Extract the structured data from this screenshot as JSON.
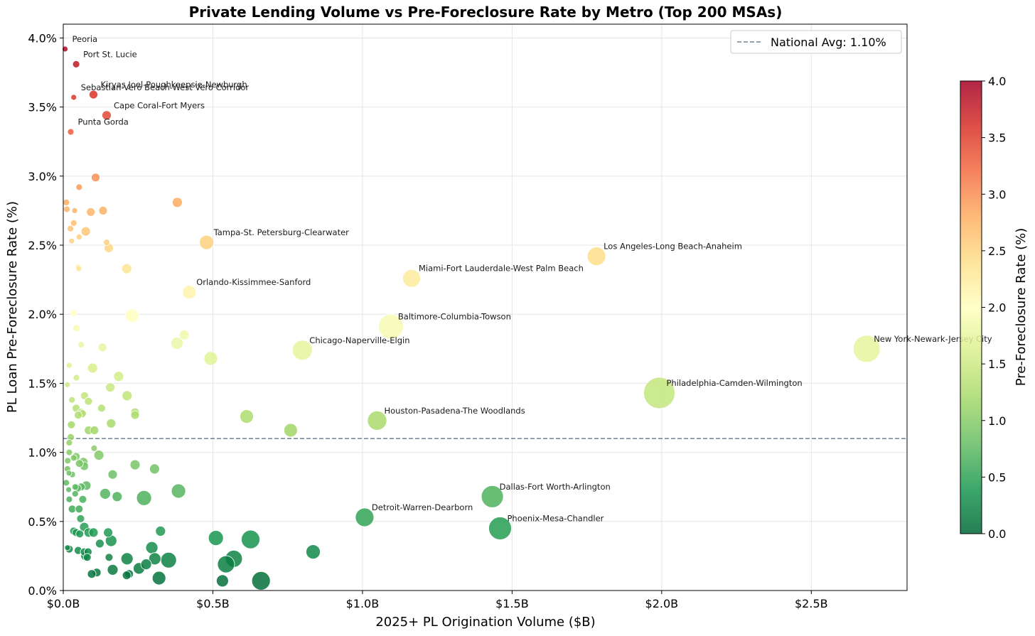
{
  "chart_data": {
    "type": "scatter",
    "title": "Private Lending Volume vs Pre-Foreclosure Rate by Metro (Top 200 MSAs)",
    "xlabel": "2025+ PL Origination Volume ($B)",
    "ylabel": "PL Loan Pre-Foreclosure Rate (%)",
    "xlim": [
      0,
      2.82
    ],
    "ylim": [
      0,
      4.1
    ],
    "x_ticks": [
      0,
      0.5,
      1.0,
      1.5,
      2.0,
      2.5
    ],
    "x_tick_labels": [
      "$0.0B",
      "$0.5B",
      "$1.0B",
      "$1.5B",
      "$2.0B",
      "$2.5B"
    ],
    "y_ticks": [
      0,
      0.5,
      1.0,
      1.5,
      2.0,
      2.5,
      3.0,
      3.5,
      4.0
    ],
    "y_tick_labels": [
      "0.0%",
      "0.5%",
      "1.0%",
      "1.5%",
      "2.0%",
      "2.5%",
      "3.0%",
      "3.5%",
      "4.0%"
    ],
    "grid": true,
    "reference_line": {
      "y": 1.1,
      "label": "National Avg: 1.10%",
      "color": "#708090"
    },
    "legend_position": "top-right",
    "colorbar": {
      "label": "Pre-Foreclosure Rate (%)",
      "range": [
        0,
        4.0
      ],
      "ticks": [
        0,
        0.5,
        1.0,
        1.5,
        2.0,
        2.5,
        3.0,
        3.5,
        4.0
      ],
      "tick_labels": [
        "0.0",
        "0.5",
        "1.0",
        "1.5",
        "2.0",
        "2.5",
        "3.0",
        "3.5",
        "4.0"
      ],
      "colormap": "RdYlGn_r",
      "colors": [
        "#006837",
        "#1a9850",
        "#66bd63",
        "#a6d96a",
        "#d9ef8b",
        "#ffffbf",
        "#fee08b",
        "#fdae61",
        "#f46d43",
        "#d73027",
        "#a50026"
      ]
    },
    "labeled_points": [
      {
        "name": "Peoria",
        "x": 0.006,
        "y": 3.92
      },
      {
        "name": "Port St. Lucie",
        "x": 0.043,
        "y": 3.81
      },
      {
        "name": "Kiryas Joel-Poughkeepsie-Newburgh",
        "x": 0.101,
        "y": 3.59
      },
      {
        "name": "Sebastian-Vero Beach-West Vero Corridor",
        "x": 0.035,
        "y": 3.57
      },
      {
        "name": "Cape Coral-Fort Myers",
        "x": 0.145,
        "y": 3.44
      },
      {
        "name": "Punta Gorda",
        "x": 0.025,
        "y": 3.32
      },
      {
        "name": "Tampa-St. Petersburg-Clearwater",
        "x": 0.479,
        "y": 2.52
      },
      {
        "name": "Los Angeles-Long Beach-Anaheim",
        "x": 1.782,
        "y": 2.42
      },
      {
        "name": "Miami-Fort Lauderdale-West Palm Beach",
        "x": 1.164,
        "y": 2.26
      },
      {
        "name": "Orlando-Kissimmee-Sanford",
        "x": 0.421,
        "y": 2.16
      },
      {
        "name": "Baltimore-Columbia-Towson",
        "x": 1.095,
        "y": 1.91
      },
      {
        "name": "Chicago-Naperville-Elgin",
        "x": 0.799,
        "y": 1.74
      },
      {
        "name": "New York-Newark-Jersey City",
        "x": 2.685,
        "y": 1.75
      },
      {
        "name": "Philadelphia-Camden-Wilmington",
        "x": 1.992,
        "y": 1.43
      },
      {
        "name": "Houston-Pasadena-The Woodlands",
        "x": 1.049,
        "y": 1.23
      },
      {
        "name": "Dallas-Fort Worth-Arlington",
        "x": 1.434,
        "y": 0.68
      },
      {
        "name": "Detroit-Warren-Dearborn",
        "x": 1.007,
        "y": 0.53
      },
      {
        "name": "Phoenix-Mesa-Chandler",
        "x": 1.46,
        "y": 0.45
      }
    ],
    "points": [
      [
        0.006,
        3.92
      ],
      [
        0.043,
        3.81
      ],
      [
        0.101,
        3.59
      ],
      [
        0.035,
        3.57
      ],
      [
        0.145,
        3.44
      ],
      [
        0.025,
        3.32
      ],
      [
        0.108,
        2.99
      ],
      [
        0.053,
        2.92
      ],
      [
        0.381,
        2.81
      ],
      [
        0.01,
        2.81
      ],
      [
        0.012,
        2.76
      ],
      [
        0.038,
        2.75
      ],
      [
        0.092,
        2.74
      ],
      [
        0.133,
        2.75
      ],
      [
        0.035,
        2.66
      ],
      [
        0.024,
        2.62
      ],
      [
        0.075,
        2.6
      ],
      [
        0.053,
        2.56
      ],
      [
        0.028,
        2.53
      ],
      [
        0.145,
        2.52
      ],
      [
        0.479,
        2.52
      ],
      [
        0.152,
        2.48
      ],
      [
        1.782,
        2.42
      ],
      [
        0.212,
        2.33
      ],
      [
        0.05,
        2.34
      ],
      [
        0.052,
        2.33
      ],
      [
        1.164,
        2.26
      ],
      [
        0.421,
        2.16
      ],
      [
        0.23,
        1.99
      ],
      [
        0.035,
        2.01
      ],
      [
        1.095,
        1.91
      ],
      [
        0.044,
        1.9
      ],
      [
        0.404,
        1.85
      ],
      [
        0.38,
        1.79
      ],
      [
        0.06,
        1.78
      ],
      [
        0.131,
        1.76
      ],
      [
        0.799,
        1.74
      ],
      [
        2.685,
        1.75
      ],
      [
        0.493,
        1.68
      ],
      [
        0.02,
        1.63
      ],
      [
        0.098,
        1.61
      ],
      [
        0.185,
        1.55
      ],
      [
        0.044,
        1.54
      ],
      [
        0.014,
        1.49
      ],
      [
        0.157,
        1.47
      ],
      [
        1.992,
        1.43
      ],
      [
        0.213,
        1.41
      ],
      [
        0.071,
        1.41
      ],
      [
        0.084,
        1.37
      ],
      [
        0.029,
        1.38
      ],
      [
        0.128,
        1.32
      ],
      [
        0.043,
        1.32
      ],
      [
        0.06,
        1.29
      ],
      [
        0.064,
        1.28
      ],
      [
        0.24,
        1.29
      ],
      [
        0.24,
        1.27
      ],
      [
        0.05,
        1.27
      ],
      [
        0.613,
        1.26
      ],
      [
        1.049,
        1.23
      ],
      [
        0.16,
        1.21
      ],
      [
        0.027,
        1.2
      ],
      [
        0.76,
        1.16
      ],
      [
        0.085,
        1.16
      ],
      [
        0.104,
        1.16
      ],
      [
        0.025,
        1.11
      ],
      [
        0.02,
        1.07
      ],
      [
        0.103,
        1.03
      ],
      [
        0.02,
        1.0
      ],
      [
        0.119,
        0.98
      ],
      [
        0.043,
        0.97
      ],
      [
        0.035,
        0.96
      ],
      [
        0.015,
        0.94
      ],
      [
        0.067,
        0.93
      ],
      [
        0.054,
        0.92
      ],
      [
        0.07,
        0.9
      ],
      [
        0.24,
        0.91
      ],
      [
        0.305,
        0.88
      ],
      [
        0.014,
        0.88
      ],
      [
        0.019,
        0.85
      ],
      [
        0.03,
        0.84
      ],
      [
        0.165,
        0.84
      ],
      [
        0.01,
        0.78
      ],
      [
        0.077,
        0.76
      ],
      [
        0.04,
        0.75
      ],
      [
        0.06,
        0.75
      ],
      [
        0.047,
        0.74
      ],
      [
        0.018,
        0.73
      ],
      [
        0.385,
        0.72
      ],
      [
        0.14,
        0.7
      ],
      [
        0.04,
        0.7
      ],
      [
        0.18,
        0.68
      ],
      [
        1.434,
        0.68
      ],
      [
        0.27,
        0.67
      ],
      [
        0.065,
        0.66
      ],
      [
        0.02,
        0.66
      ],
      [
        0.03,
        0.59
      ],
      [
        0.053,
        0.59
      ],
      [
        1.007,
        0.53
      ],
      [
        0.058,
        0.52
      ],
      [
        1.46,
        0.45
      ],
      [
        0.07,
        0.46
      ],
      [
        0.035,
        0.43
      ],
      [
        0.325,
        0.43
      ],
      [
        0.15,
        0.42
      ],
      [
        0.043,
        0.42
      ],
      [
        0.055,
        0.41
      ],
      [
        0.085,
        0.42
      ],
      [
        0.101,
        0.42
      ],
      [
        0.51,
        0.38
      ],
      [
        0.626,
        0.37
      ],
      [
        0.16,
        0.36
      ],
      [
        0.122,
        0.34
      ],
      [
        0.296,
        0.31
      ],
      [
        0.014,
        0.31
      ],
      [
        0.02,
        0.3
      ],
      [
        0.05,
        0.29
      ],
      [
        0.835,
        0.28
      ],
      [
        0.07,
        0.28
      ],
      [
        0.083,
        0.28
      ],
      [
        0.073,
        0.25
      ],
      [
        0.08,
        0.24
      ],
      [
        0.153,
        0.24
      ],
      [
        0.213,
        0.23
      ],
      [
        0.306,
        0.23
      ],
      [
        0.352,
        0.22
      ],
      [
        0.57,
        0.23
      ],
      [
        0.277,
        0.19
      ],
      [
        0.544,
        0.19
      ],
      [
        0.253,
        0.16
      ],
      [
        0.165,
        0.15
      ],
      [
        0.112,
        0.13
      ],
      [
        0.095,
        0.12
      ],
      [
        0.22,
        0.12
      ],
      [
        0.212,
        0.11
      ],
      [
        0.32,
        0.09
      ],
      [
        0.532,
        0.07
      ],
      [
        0.661,
        0.07
      ]
    ],
    "sizes": [
      8,
      10,
      12,
      8,
      13,
      9,
      12,
      9,
      14,
      9,
      9,
      8,
      12,
      12,
      9,
      9,
      13,
      8,
      8,
      9,
      20,
      13,
      26,
      14,
      8,
      8,
      25,
      19,
      19,
      9,
      35,
      10,
      14,
      17,
      9,
      12,
      28,
      38,
      19,
      8,
      14,
      14,
      9,
      8,
      13,
      44,
      14,
      11,
      11,
      9,
      11,
      11,
      11,
      11,
      12,
      12,
      11,
      19,
      27,
      13,
      11,
      19,
      12,
      12,
      10,
      9,
      9,
      9,
      14,
      11,
      9,
      9,
      13,
      11,
      12,
      14,
      14,
      9,
      8,
      9,
      13,
      9,
      13,
      9,
      11,
      11,
      8,
      20,
      15,
      9,
      14,
      31,
      21,
      11,
      9,
      11,
      11,
      26,
      11,
      32,
      13,
      11,
      14,
      13,
      11,
      11,
      13,
      13,
      21,
      26,
      16,
      12,
      17,
      8,
      11,
      11,
      20,
      11,
      11,
      12,
      11,
      11,
      17,
      17,
      22,
      24,
      15,
      24,
      16,
      15,
      12,
      12,
      12,
      12,
      19,
      17,
      26
    ]
  }
}
